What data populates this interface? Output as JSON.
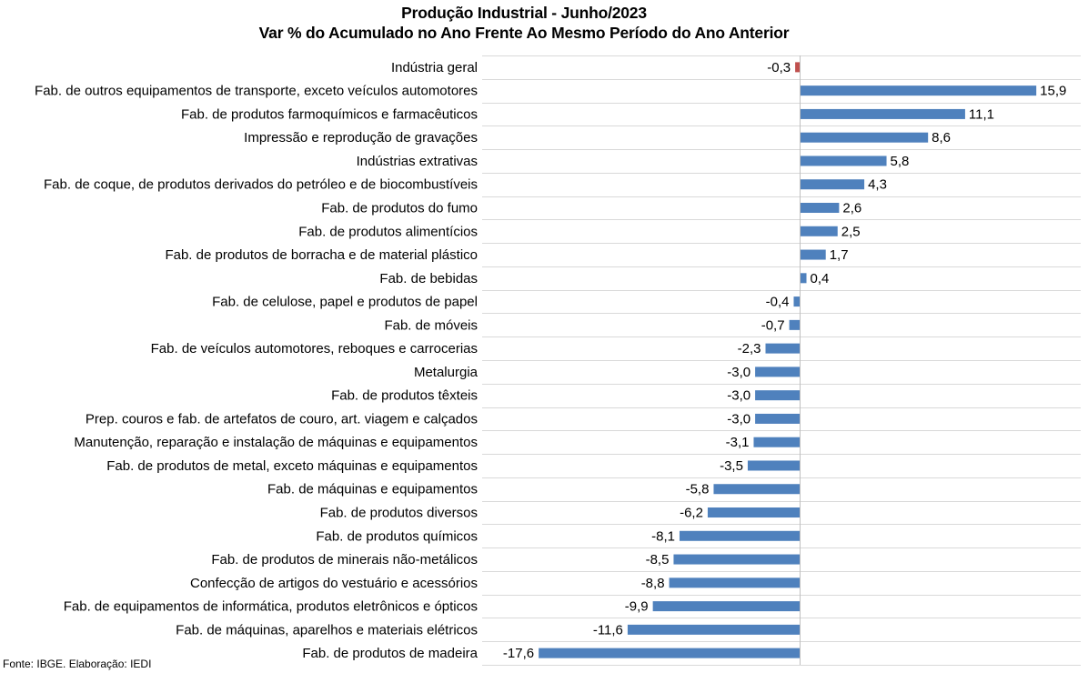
{
  "chart_data": {
    "type": "bar",
    "orientation": "horizontal",
    "title": "Produção Industrial - Junho/2023",
    "subtitle": "Var % do Acumulado no Ano Frente Ao Mesmo Período do Ano Anterior",
    "categories": [
      "Indústria geral",
      "Fab. de outros equipamentos de transporte, exceto veículos automotores",
      "Fab. de produtos farmoquímicos e farmacêuticos",
      "Impressão e reprodução de gravações",
      "Indústrias extrativas",
      "Fab. de coque, de produtos derivados do petróleo e de biocombustíveis",
      "Fab. de produtos do fumo",
      "Fab. de produtos alimentícios",
      "Fab. de produtos de borracha e de material plástico",
      "Fab. de bebidas",
      "Fab. de celulose, papel e produtos de papel",
      "Fab. de móveis",
      "Fab. de veículos automotores, reboques e carrocerias",
      "Metalurgia",
      "Fab. de produtos têxteis",
      "Prep. couros e fab. de artefatos de couro, art. viagem e calçados",
      "Manutenção, reparação e instalação de máquinas e equipamentos",
      "Fab. de produtos de metal, exceto máquinas e equipamentos",
      "Fab. de máquinas e equipamentos",
      "Fab. de produtos diversos",
      "Fab. de produtos químicos",
      "Fab. de produtos de minerais não-metálicos",
      "Confecção de artigos do vestuário e acessórios",
      "Fab. de equipamentos de informática, produtos eletrônicos e ópticos",
      "Fab. de máquinas, aparelhos e materiais elétricos",
      "Fab. de produtos de madeira"
    ],
    "values": [
      -0.3,
      15.9,
      11.1,
      8.6,
      5.8,
      4.3,
      2.6,
      2.5,
      1.7,
      0.4,
      -0.4,
      -0.7,
      -2.3,
      -3.0,
      -3.0,
      -3.0,
      -3.1,
      -3.5,
      -5.8,
      -6.2,
      -8.1,
      -8.5,
      -8.8,
      -9.9,
      -11.6,
      -17.6
    ],
    "value_labels": [
      "-0,3",
      "15,9",
      "11,1",
      "8,6",
      "5,8",
      "4,3",
      "2,6",
      "2,5",
      "1,7",
      "0,4",
      "-0,4",
      "-0,7",
      "-2,3",
      "-3,0",
      "-3,0",
      "-3,0",
      "-3,1",
      "-3,5",
      "-5,8",
      "-6,2",
      "-8,1",
      "-8,5",
      "-8,8",
      "-9,9",
      "-11,6",
      "-17,6"
    ],
    "highlight_index": 0,
    "xlim": [
      -17.6,
      15.9
    ],
    "grid": true,
    "legend": "none",
    "colors": {
      "bar": "#4F81BD",
      "highlight": "#C0504D",
      "grid": "#D9D9D9",
      "axis": "#BFBFBF"
    }
  },
  "footer": {
    "source": "Fonte: IBGE. Elaboração: IEDI"
  }
}
